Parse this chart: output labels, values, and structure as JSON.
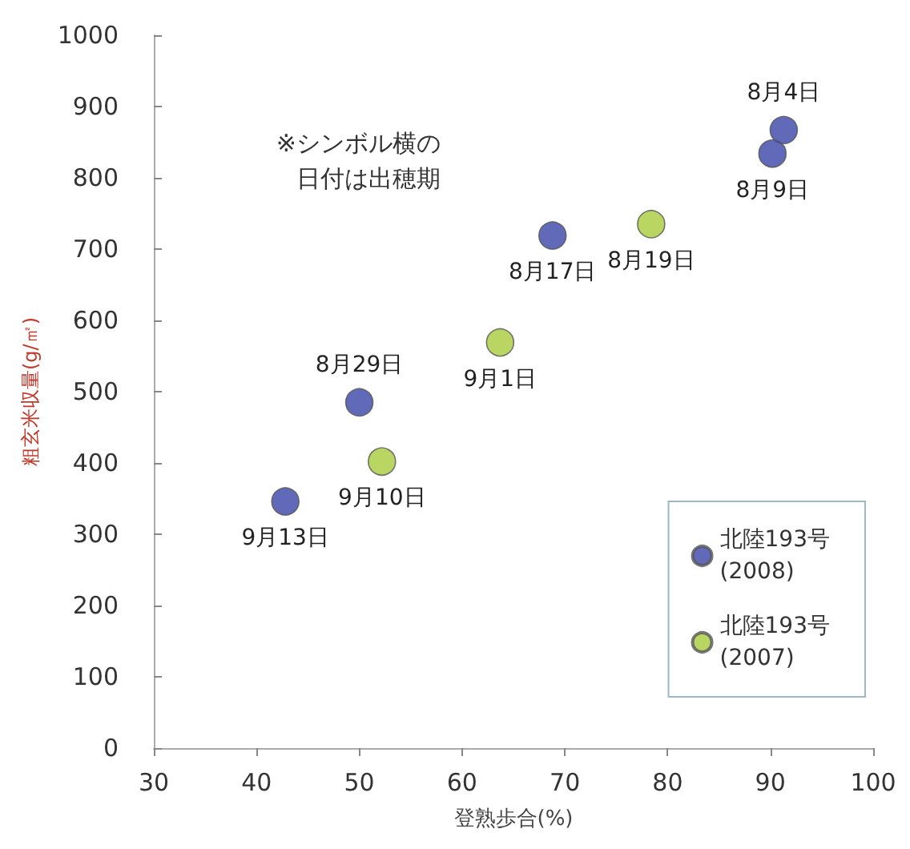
{
  "chart_data": {
    "type": "scatter",
    "xlabel": "登熟歩合(%)",
    "ylabel": "粗玄米収量(g/㎡)",
    "xlim": [
      30,
      100
    ],
    "xticks": [
      30,
      40,
      50,
      60,
      70,
      80,
      90,
      100
    ],
    "ylim": [
      0,
      1000
    ],
    "yticks": [
      0,
      100,
      200,
      300,
      400,
      500,
      600,
      700,
      800,
      900,
      1000
    ],
    "grid": false,
    "legend": "bottom right",
    "marker": "circle",
    "series": [
      {
        "name": "北陸193号\n(2008)",
        "color": "#3a45a8",
        "x": [
          91.3,
          90.2,
          68.8,
          50.0,
          42.8
        ],
        "values": [
          867,
          834,
          719,
          485,
          346
        ]
      },
      {
        "name": "北陸193号\n(2007)",
        "color": "#a8cc3c",
        "x": [
          78.4,
          63.7,
          52.2
        ],
        "values": [
          735,
          569,
          402
        ]
      }
    ],
    "annotations": [
      "※シンボル横の",
      "日付は出穂期",
      {
        "text": "8月4日",
        "x": 91.3,
        "y": 867
      },
      {
        "text": "8月9日",
        "x": 90.2,
        "y": 834
      },
      {
        "text": "8月17日",
        "x": 68.8,
        "y": 719
      },
      {
        "text": "8月29日",
        "x": 50.0,
        "y": 485
      },
      {
        "text": "9月13日",
        "x": 42.8,
        "y": 346
      },
      {
        "text": "8月19日",
        "x": 78.4,
        "y": 735
      },
      {
        "text": "9月1日",
        "x": 63.7,
        "y": 569
      },
      {
        "text": "9月10日",
        "x": 52.2,
        "y": 402
      }
    ]
  }
}
